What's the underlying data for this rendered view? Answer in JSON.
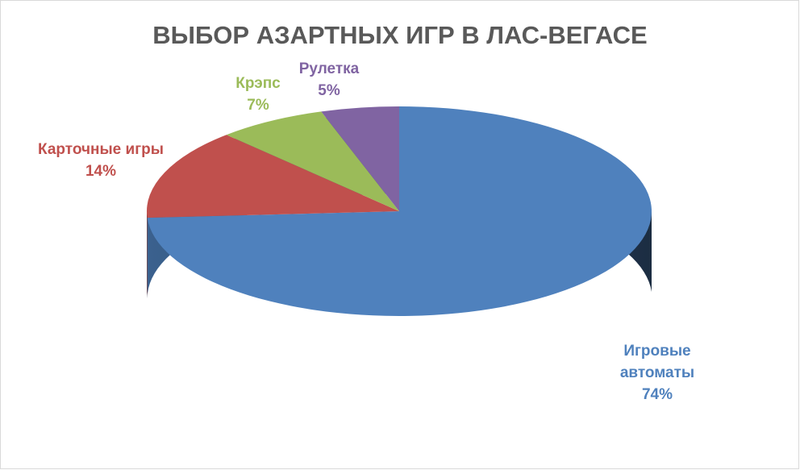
{
  "chart_data": {
    "type": "pie3d",
    "title": "ВЫБОР АЗАРТНЫХ ИГР В ЛАС-ВЕГАСЕ",
    "categories": [
      "Игровые автоматы",
      "Карточные игры",
      "Крэпс",
      "Рулетка"
    ],
    "values": [
      74,
      14,
      7,
      5
    ],
    "value_labels": [
      "74%",
      "14%",
      "7%",
      "5%"
    ],
    "colors": [
      "#4f81bd",
      "#c0504d",
      "#9bbb59",
      "#8064a2"
    ]
  }
}
